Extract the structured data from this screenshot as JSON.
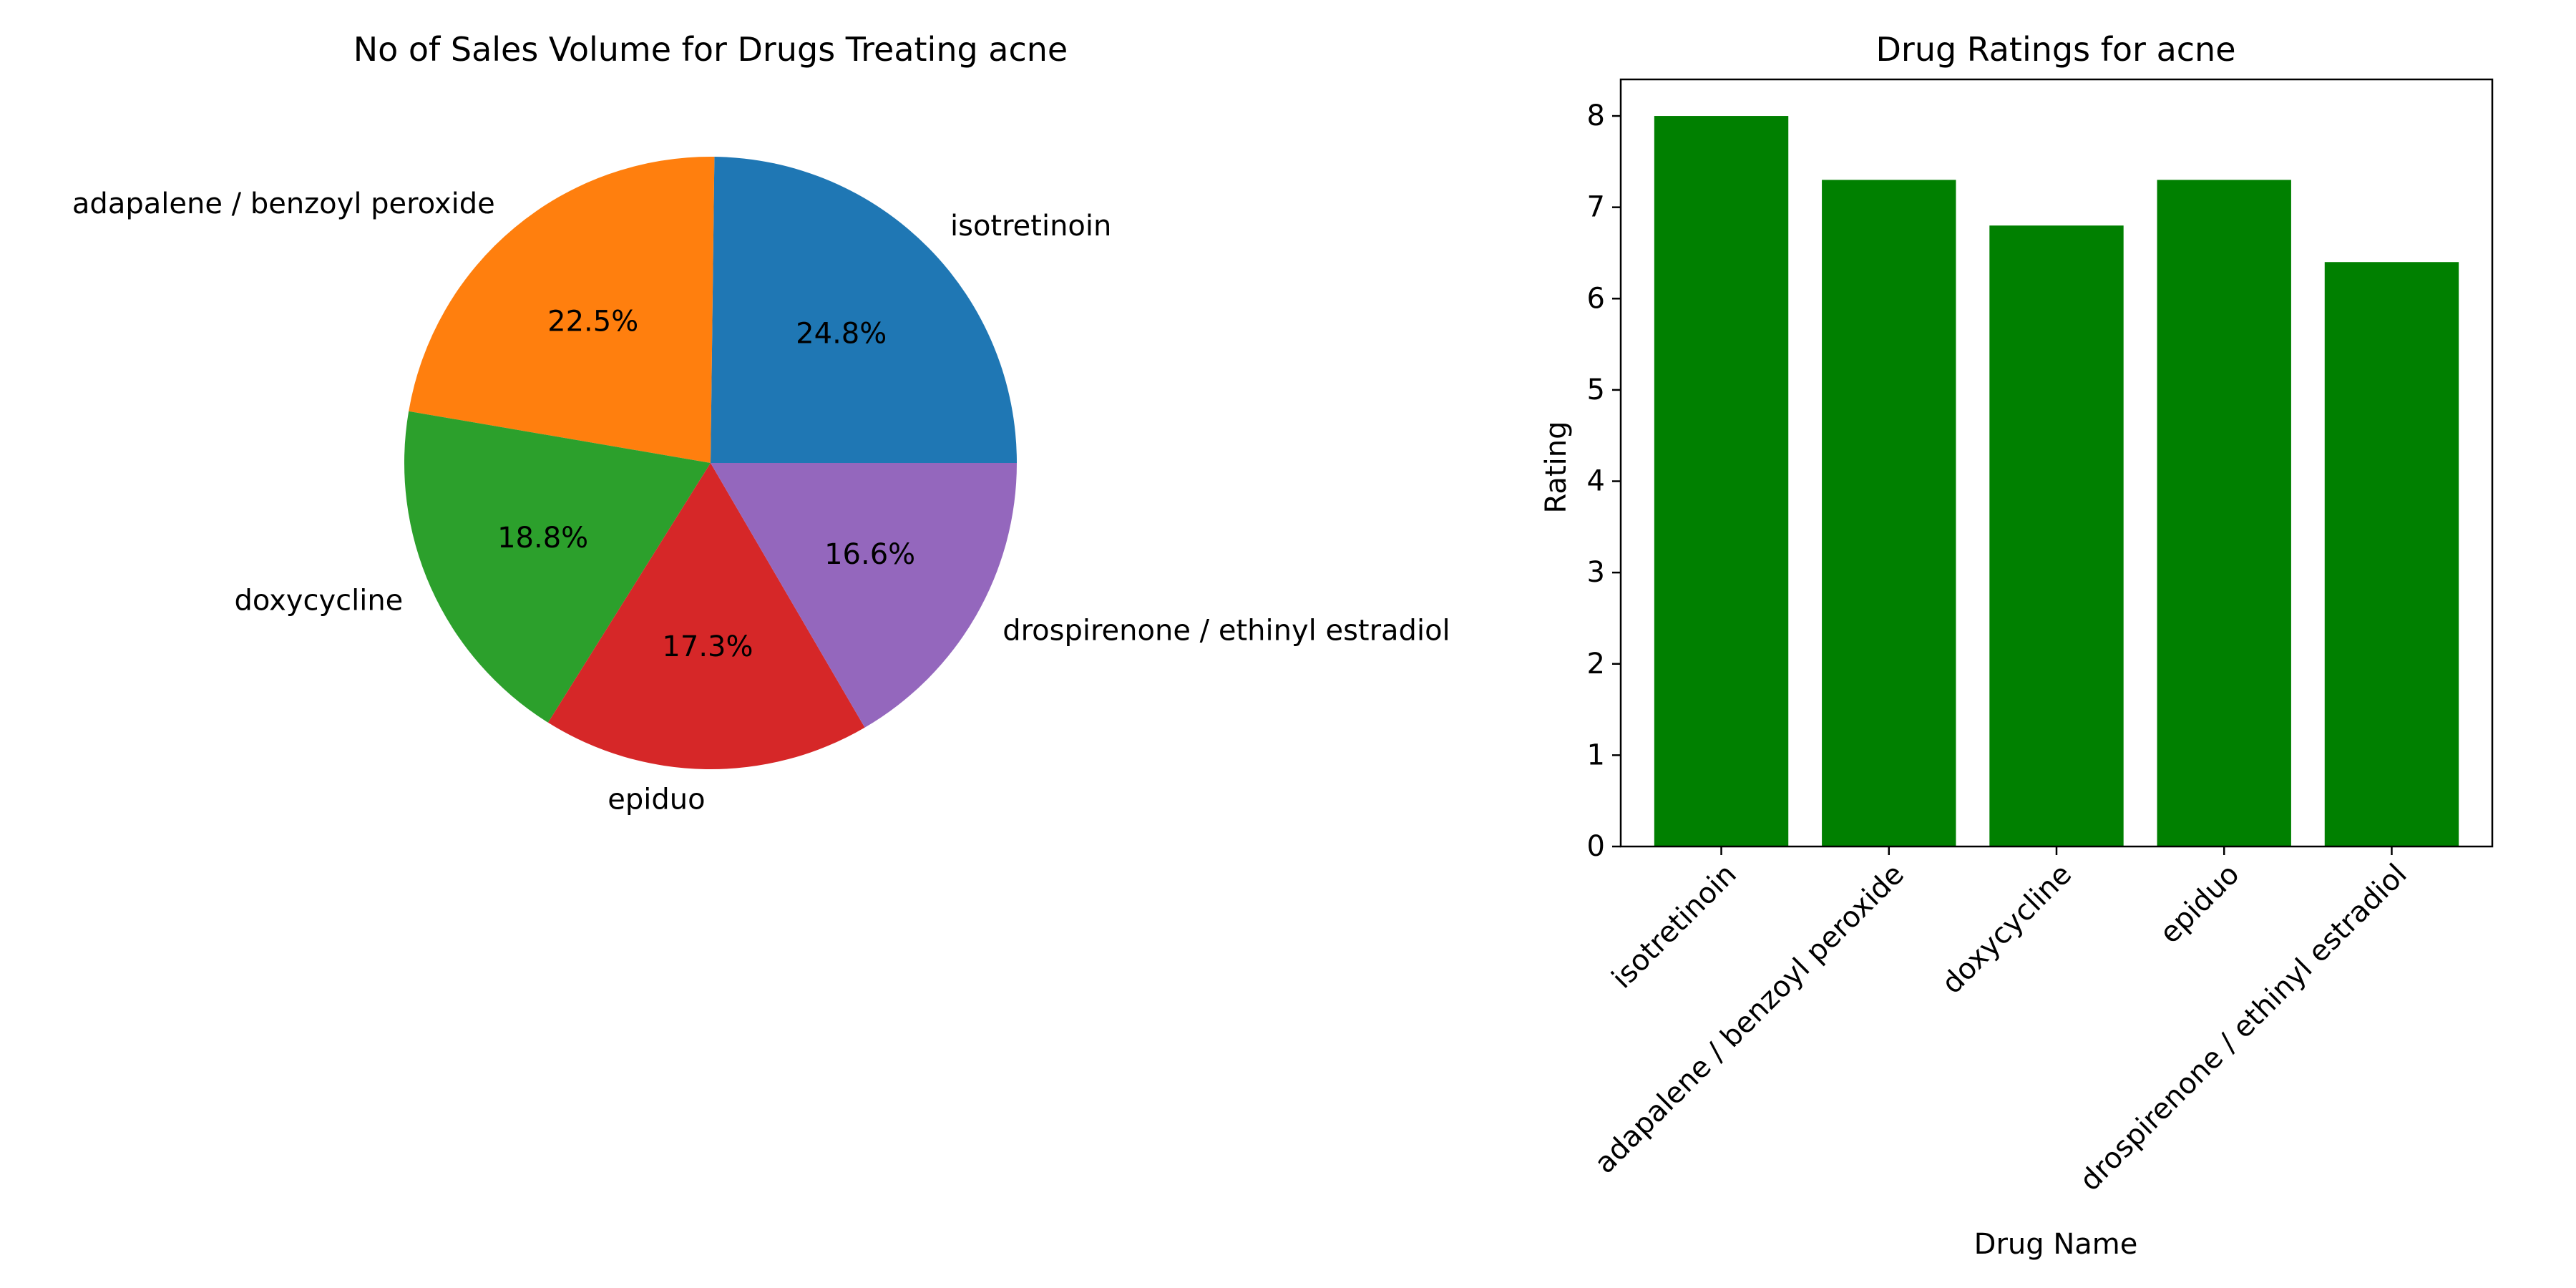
{
  "chart_data": [
    {
      "type": "pie",
      "title": "No of Sales Volume for Drugs Treating acne",
      "labels": [
        "isotretinoin",
        "adapalene / benzoyl peroxide",
        "doxycycline",
        "epiduo",
        "drospirenone / ethinyl estradiol"
      ],
      "values": [
        24.8,
        22.5,
        18.8,
        17.3,
        16.6
      ],
      "value_labels": [
        "24.8%",
        "22.5%",
        "18.8%",
        "17.3%",
        "16.6%"
      ],
      "colors": [
        "#1f77b4",
        "#ff7f0e",
        "#2ca02c",
        "#d62728",
        "#9467bd"
      ],
      "start_angle_deg": 0,
      "direction": "counterclockwise"
    },
    {
      "type": "bar",
      "title": "Drug Ratings for acne",
      "categories": [
        "isotretinoin",
        "adapalene / benzoyl peroxide",
        "doxycycline",
        "epiduo",
        "drospirenone / ethinyl estradiol"
      ],
      "values": [
        8.0,
        7.3,
        6.8,
        7.3,
        6.4
      ],
      "xlabel": "Drug Name",
      "ylabel": "Rating",
      "ylim": [
        0,
        8.4
      ],
      "yticks": [
        "0",
        "1",
        "2",
        "3",
        "4",
        "5",
        "6",
        "7",
        "8"
      ],
      "bar_color": "#008000",
      "xtick_rotation_deg": 45,
      "grid": false
    }
  ]
}
